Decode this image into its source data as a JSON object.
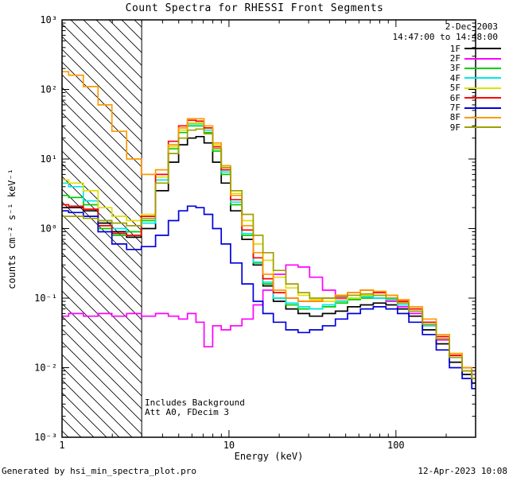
{
  "title": "Count Spectra for RHESSI Front Segments",
  "header": {
    "date": "2-Dec-2003",
    "time_range": "14:47:00 to 14:48:00"
  },
  "annotations": {
    "line1": "Includes Background",
    "line2": "Att A0, FDecim 3"
  },
  "footer": {
    "left": "Generated by hsi_min_spectra_plot.pro",
    "right": "12-Apr-2023 10:08"
  },
  "chart_data": {
    "type": "line",
    "mode": "histogram-step",
    "title": "Count Spectra for RHESSI Front Segments",
    "xlabel": "Energy (keV)",
    "ylabel": "counts cm⁻² s⁻¹ keV⁻¹",
    "xscale": "log",
    "yscale": "log",
    "xlim": [
      1,
      300
    ],
    "ylim": [
      0.001,
      1000
    ],
    "x_ticks": [
      1,
      10,
      100
    ],
    "x_tick_labels": [
      "1",
      "10",
      "100"
    ],
    "y_ticks": [
      0.001,
      0.01,
      0.1,
      1,
      10,
      100,
      1000
    ],
    "y_tick_labels": [
      "10⁻³",
      "10⁻²",
      "10⁻¹",
      "10⁰",
      "10¹",
      "10²",
      "10³"
    ],
    "grid": false,
    "legend_position": "top-right",
    "hatched_region": {
      "xmin": 1,
      "xmax": 3
    },
    "energies": [
      1.0,
      1.2,
      1.5,
      1.8,
      2.2,
      2.7,
      3.3,
      4.0,
      4.7,
      5.3,
      6.0,
      6.7,
      7.5,
      8.5,
      9.5,
      11,
      13,
      15,
      17,
      20,
      24,
      28,
      33,
      40,
      47,
      56,
      67,
      80,
      95,
      110,
      130,
      160,
      190,
      230,
      270,
      300
    ],
    "series": [
      {
        "name": "1F",
        "color": "#000000",
        "values": [
          2.0,
          2.0,
          1.8,
          1.2,
          0.9,
          0.75,
          1.0,
          3.5,
          9,
          16,
          20,
          21,
          17,
          9,
          4.5,
          1.8,
          0.7,
          0.3,
          0.15,
          0.09,
          0.07,
          0.06,
          0.055,
          0.06,
          0.065,
          0.075,
          0.08,
          0.085,
          0.08,
          0.07,
          0.055,
          0.035,
          0.022,
          0.012,
          0.008,
          0.006
        ]
      },
      {
        "name": "2F",
        "color": "#ff00ff",
        "values": [
          0.055,
          0.06,
          0.055,
          0.06,
          0.055,
          0.06,
          0.055,
          0.06,
          0.055,
          0.05,
          0.06,
          0.045,
          0.02,
          0.04,
          0.035,
          0.04,
          0.05,
          0.08,
          0.13,
          0.22,
          0.3,
          0.28,
          0.2,
          0.13,
          0.1,
          0.1,
          0.11,
          0.1,
          0.09,
          0.075,
          0.06,
          0.04,
          0.025,
          0.014,
          0.009,
          0.007
        ]
      },
      {
        "name": "3F",
        "color": "#00cc00",
        "values": [
          3.0,
          2.8,
          2.2,
          1.0,
          0.8,
          0.9,
          1.3,
          5,
          14,
          24,
          30,
          30,
          24,
          13,
          6,
          2.2,
          0.8,
          0.32,
          0.16,
          0.1,
          0.08,
          0.07,
          0.07,
          0.075,
          0.085,
          0.095,
          0.1,
          0.1,
          0.095,
          0.085,
          0.065,
          0.045,
          0.028,
          0.015,
          0.009,
          0.007
        ]
      },
      {
        "name": "4F",
        "color": "#00e8e8",
        "values": [
          4.5,
          4.0,
          2.5,
          1.3,
          1.0,
          0.8,
          1.2,
          5,
          15,
          26,
          32,
          32,
          26,
          14,
          6.5,
          2.4,
          0.85,
          0.33,
          0.17,
          0.1,
          0.085,
          0.075,
          0.07,
          0.08,
          0.09,
          0.1,
          0.105,
          0.1,
          0.095,
          0.08,
          0.065,
          0.04,
          0.026,
          0.014,
          0.009,
          0.007
        ]
      },
      {
        "name": "5F",
        "color": "#e0e000",
        "values": [
          5.0,
          4.5,
          3.5,
          2.0,
          1.5,
          1.3,
          1.6,
          5.5,
          15,
          26,
          33,
          33,
          28,
          16,
          8,
          3.2,
          1.3,
          0.6,
          0.35,
          0.2,
          0.14,
          0.11,
          0.095,
          0.09,
          0.095,
          0.1,
          0.11,
          0.11,
          0.1,
          0.09,
          0.07,
          0.045,
          0.028,
          0.016,
          0.01,
          0.007
        ]
      },
      {
        "name": "6F",
        "color": "#ff0000",
        "values": [
          2.2,
          2.1,
          1.9,
          1.1,
          0.85,
          0.8,
          1.5,
          6,
          18,
          30,
          36,
          35,
          28,
          15,
          7,
          2.6,
          0.95,
          0.38,
          0.19,
          0.12,
          0.1,
          0.09,
          0.09,
          0.1,
          0.11,
          0.12,
          0.13,
          0.12,
          0.11,
          0.09,
          0.07,
          0.045,
          0.028,
          0.015,
          0.01,
          0.007
        ]
      },
      {
        "name": "7F",
        "color": "#0000dd",
        "values": [
          1.8,
          1.7,
          1.5,
          0.9,
          0.6,
          0.5,
          0.55,
          0.8,
          1.3,
          1.8,
          2.1,
          2.0,
          1.6,
          1.0,
          0.6,
          0.32,
          0.16,
          0.09,
          0.06,
          0.045,
          0.035,
          0.032,
          0.035,
          0.04,
          0.05,
          0.06,
          0.07,
          0.075,
          0.07,
          0.06,
          0.045,
          0.03,
          0.018,
          0.01,
          0.007,
          0.005
        ]
      },
      {
        "name": "8F",
        "color": "#ff9900",
        "values": [
          180,
          160,
          110,
          60,
          25,
          10,
          6,
          7,
          16,
          28,
          38,
          38,
          30,
          17,
          8,
          3.0,
          1.1,
          0.45,
          0.22,
          0.13,
          0.1,
          0.09,
          0.09,
          0.1,
          0.11,
          0.12,
          0.13,
          0.125,
          0.11,
          0.095,
          0.075,
          0.05,
          0.03,
          0.016,
          0.01,
          0.007
        ]
      },
      {
        "name": "9F",
        "color": "#a0a000",
        "values": [
          1.5,
          1.5,
          1.4,
          1.3,
          1.2,
          1.1,
          1.4,
          4.5,
          12,
          20,
          26,
          27,
          23,
          14,
          7.5,
          3.5,
          1.6,
          0.8,
          0.45,
          0.25,
          0.16,
          0.12,
          0.1,
          0.1,
          0.105,
          0.11,
          0.115,
          0.11,
          0.1,
          0.085,
          0.065,
          0.042,
          0.026,
          0.014,
          0.009,
          0.007
        ]
      }
    ]
  }
}
